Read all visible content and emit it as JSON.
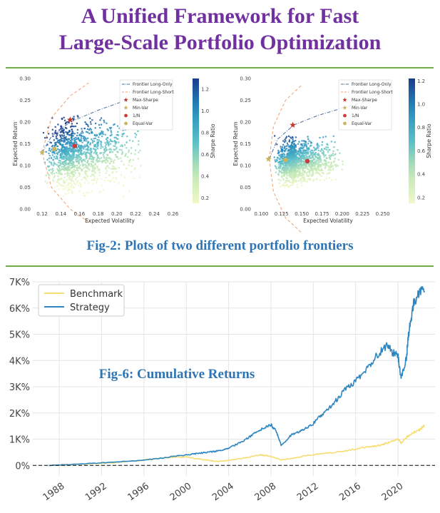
{
  "header": {
    "title_line1": "A Unified Framework for Fast",
    "title_line2": "Large-Scale Portfolio Optimization"
  },
  "fig2_caption": "Fig-2: Plots of two different portfolio frontiers",
  "colors": {
    "title": "#7030a0",
    "caption": "#2e75b6",
    "rule": "#70ad47",
    "strategy": "#2e86c1",
    "benchmark": "#f7dc6f",
    "long_only": "#4a6fa5",
    "long_short": "#f0a070"
  },
  "chart_data": [
    {
      "type": "scatter",
      "title": "",
      "xlabel": "Expected Volatility",
      "ylabel": "Expected Return",
      "xlim": [
        0.11,
        0.275
      ],
      "ylim": [
        0.0,
        0.3
      ],
      "xticks": [
        "0.12",
        "0.14",
        "0.16",
        "0.18",
        "0.20",
        "0.22",
        "0.24",
        "0.26"
      ],
      "xtick_values": [
        0.12,
        0.14,
        0.16,
        0.18,
        0.2,
        0.22,
        0.24,
        0.26
      ],
      "yticks": [
        "0.00",
        "0.05",
        "0.10",
        "0.15",
        "0.20",
        "0.25",
        "0.30"
      ],
      "ytick_values": [
        0.0,
        0.05,
        0.1,
        0.15,
        0.2,
        0.25,
        0.3
      ],
      "colorbar": {
        "label": "Sharpe Ratio",
        "ticks": [
          "0.2",
          "0.4",
          "0.6",
          "0.8",
          "1.0",
          "1.2"
        ],
        "tick_values": [
          0.2,
          0.4,
          0.6,
          0.8,
          1.0,
          1.2
        ],
        "range": [
          0.15,
          1.3
        ]
      },
      "legend": [
        "Frontier Long-Only",
        "Frontier Long-Short",
        "Max-Sharpe",
        "Min-Var",
        "1/N",
        "Equal-Var"
      ],
      "legend_position": "top-right",
      "frontier_long_only": {
        "x": [
          0.12,
          0.13,
          0.15,
          0.18,
          0.21,
          0.23
        ],
        "y": [
          0.13,
          0.167,
          0.2,
          0.227,
          0.25,
          0.262
        ]
      },
      "frontier_long_short": {
        "x": [
          0.12,
          0.13,
          0.15,
          0.17
        ],
        "y": [
          0.13,
          0.21,
          0.26,
          0.29
        ]
      },
      "cloud": {
        "x_range": [
          0.12,
          0.225
        ],
        "y_range": [
          0.03,
          0.22
        ]
      },
      "points": {
        "max_sharpe": {
          "x": 0.15,
          "y": 0.205
        },
        "min_var": {
          "x": 0.12,
          "y": 0.13
        },
        "one_over_n": {
          "x": 0.155,
          "y": 0.145
        },
        "equal_var": {
          "x": 0.133,
          "y": 0.138
        }
      }
    },
    {
      "type": "scatter",
      "title": "",
      "xlabel": "Expected Volatility",
      "ylabel": "Expected Return",
      "xlim": [
        0.09,
        0.275
      ],
      "ylim": [
        0.0,
        0.3
      ],
      "xticks": [
        "0.100",
        "0.125",
        "0.150",
        "0.175",
        "0.200",
        "0.225",
        "0.250"
      ],
      "xtick_values": [
        0.1,
        0.125,
        0.15,
        0.175,
        0.2,
        0.225,
        0.25
      ],
      "yticks": [
        "0.00",
        "0.05",
        "0.10",
        "0.15",
        "0.20",
        "0.25",
        "0.30"
      ],
      "ytick_values": [
        0.0,
        0.05,
        0.1,
        0.15,
        0.2,
        0.25,
        0.3
      ],
      "colorbar": {
        "label": "Sharpe Ratio",
        "ticks": [
          "0.2",
          "0.4",
          "0.6",
          "0.8",
          "1.0",
          "1.2"
        ],
        "tick_values": [
          0.2,
          0.4,
          0.6,
          0.8,
          1.0,
          1.2
        ],
        "range": [
          0.15,
          1.22
        ]
      },
      "legend": [
        "Frontier Long-Only",
        "Frontier Long-Short",
        "Max-Sharpe",
        "Min-Var",
        "1/N",
        "Equal-Var"
      ],
      "legend_position": "top-right",
      "frontier_long_only": {
        "x": [
          0.11,
          0.12,
          0.14,
          0.17,
          0.2,
          0.235
        ],
        "y": [
          0.115,
          0.16,
          0.193,
          0.215,
          0.232,
          0.25
        ]
      },
      "frontier_long_short": {
        "x": [
          0.11,
          0.115,
          0.13,
          0.15
        ],
        "y": [
          0.115,
          0.19,
          0.25,
          0.285
        ]
      },
      "cloud": {
        "x_range": [
          0.115,
          0.2
        ],
        "y_range": [
          0.05,
          0.17
        ]
      },
      "points": {
        "max_sharpe": {
          "x": 0.139,
          "y": 0.193
        },
        "min_var": {
          "x": 0.109,
          "y": 0.115
        },
        "one_over_n": {
          "x": 0.157,
          "y": 0.11
        },
        "equal_var": {
          "x": 0.13,
          "y": 0.113
        }
      }
    },
    {
      "type": "line",
      "title": "",
      "annotation": "Fig-6: Cumulative Returns",
      "xlabel": "",
      "ylabel": "",
      "xlim": [
        1985.5,
        2023.5
      ],
      "ylim": [
        -0.4,
        7.0
      ],
      "xticks": [
        "1988",
        "1992",
        "1996",
        "2000",
        "2004",
        "2008",
        "2012",
        "2016",
        "2020"
      ],
      "xtick_values": [
        1988,
        1992,
        1996,
        2000,
        2004,
        2008,
        2012,
        2016,
        2020
      ],
      "yticks": [
        "0%",
        "1K%",
        "2K%",
        "3K%",
        "4K%",
        "5K%",
        "6K%",
        "7K%"
      ],
      "ytick_values": [
        0,
        1,
        2,
        3,
        4,
        5,
        6,
        7
      ],
      "grid": true,
      "legend_position": "top-left",
      "baseline": 0,
      "series": [
        {
          "name": "Benchmark",
          "x": [
            1987,
            1990,
            1993,
            1996,
            1998,
            2000,
            2002,
            2003,
            2005,
            2007,
            2008,
            2009,
            2011,
            2013,
            2015,
            2017,
            2018,
            2019,
            2020,
            2020.3,
            2021,
            2022,
            2022.5
          ],
          "values": [
            0,
            0.05,
            0.1,
            0.2,
            0.3,
            0.32,
            0.2,
            0.15,
            0.25,
            0.4,
            0.35,
            0.2,
            0.35,
            0.45,
            0.55,
            0.7,
            0.75,
            0.85,
            1.0,
            0.85,
            1.15,
            1.35,
            1.5
          ]
        },
        {
          "name": "Strategy",
          "x": [
            1987,
            1990,
            1993,
            1996,
            1998,
            2000,
            2001,
            2002,
            2003,
            2004,
            2005,
            2006,
            2007,
            2008,
            2008.5,
            2009,
            2010,
            2011,
            2012,
            2013,
            2014,
            2015,
            2016,
            2017,
            2018,
            2019,
            2019.5,
            2020,
            2020.3,
            2020.8,
            2021,
            2021.5,
            2022,
            2022.5
          ],
          "values": [
            0,
            0.05,
            0.12,
            0.2,
            0.3,
            0.4,
            0.45,
            0.5,
            0.55,
            0.65,
            0.85,
            1.1,
            1.35,
            1.55,
            1.3,
            0.75,
            1.2,
            1.35,
            1.6,
            2.0,
            2.4,
            2.9,
            3.2,
            3.65,
            4.2,
            4.6,
            4.3,
            4.2,
            3.3,
            4.1,
            5.0,
            6.2,
            6.6,
            6.65
          ]
        }
      ]
    }
  ]
}
